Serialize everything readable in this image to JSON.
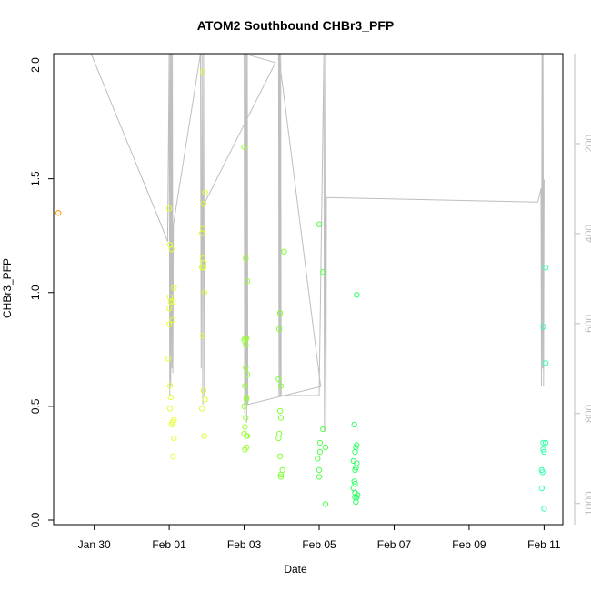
{
  "chart_data": {
    "type": "scatter",
    "title": "ATOM2 Southbound CHBr3_PFP",
    "xlabel": "Date",
    "ylabel": "CHBr3_PFP",
    "xlim": [
      "2017-01-28T22:00",
      "2017-02-11T12:00"
    ],
    "ylim": [
      -0.02,
      2.05
    ],
    "x_ticks": [
      {
        "date": "2017-01-30",
        "label": "Jan 30"
      },
      {
        "date": "2017-02-01",
        "label": "Feb 01"
      },
      {
        "date": "2017-02-03",
        "label": "Feb 03"
      },
      {
        "date": "2017-02-05",
        "label": "Feb 05"
      },
      {
        "date": "2017-02-07",
        "label": "Feb 07"
      },
      {
        "date": "2017-02-09",
        "label": "Feb 09"
      },
      {
        "date": "2017-02-11",
        "label": "Feb 11"
      }
    ],
    "y_ticks": [
      {
        "value": 0.0,
        "label": "0.0"
      },
      {
        "value": 0.5,
        "label": "0.5"
      },
      {
        "value": 1.0,
        "label": "1.0"
      },
      {
        "value": 1.5,
        "label": "1.5"
      },
      {
        "value": 2.0,
        "label": "2.0"
      }
    ],
    "right_axis": {
      "quantity": "pressure",
      "reversed": true,
      "lim": [
        -0.05,
        1047
      ],
      "ticks": [
        {
          "value": 200,
          "label": "200"
        },
        {
          "value": 400,
          "label": "400"
        },
        {
          "value": 600,
          "label": "600"
        },
        {
          "value": 800,
          "label": "800"
        },
        {
          "value": 1000,
          "label": "1000"
        }
      ],
      "color": "#bebebe"
    },
    "points": [
      {
        "x": "2017-01-29T01:00",
        "y": 1.35,
        "color": "#ff9900"
      },
      {
        "x": "2017-02-01T00:00",
        "y": 1.37,
        "color": "#e6ff33"
      },
      {
        "x": "2017-02-01T00:30",
        "y": 1.21,
        "color": "#e6ff33"
      },
      {
        "x": "2017-02-01T01:30",
        "y": 1.19,
        "color": "#e6ff33"
      },
      {
        "x": "2017-02-01T03:00",
        "y": 1.02,
        "color": "#e6ff33"
      },
      {
        "x": "2017-02-01T00:30",
        "y": 0.98,
        "color": "#e6ff33"
      },
      {
        "x": "2017-02-01T01:00",
        "y": 0.96,
        "color": "#e6ff33"
      },
      {
        "x": "2017-02-01T02:30",
        "y": 0.96,
        "color": "#e6ff33"
      },
      {
        "x": "2017-02-01T00:00",
        "y": 0.93,
        "color": "#e6ff33"
      },
      {
        "x": "2017-02-01T02:00",
        "y": 0.88,
        "color": "#e6ff33"
      },
      {
        "x": "2017-02-01T00:00",
        "y": 0.86,
        "color": "#e6ff33"
      },
      {
        "x": "2017-01-31T23:30",
        "y": 0.71,
        "color": "#e6ff33"
      },
      {
        "x": "2017-02-01T00:30",
        "y": 0.59,
        "color": "#e6ff33"
      },
      {
        "x": "2017-02-01T01:00",
        "y": 0.54,
        "color": "#e6ff33"
      },
      {
        "x": "2017-02-01T00:30",
        "y": 0.49,
        "color": "#e6ff33"
      },
      {
        "x": "2017-02-01T03:00",
        "y": 0.44,
        "color": "#e6ff33"
      },
      {
        "x": "2017-02-01T02:00",
        "y": 0.43,
        "color": "#e6ff33"
      },
      {
        "x": "2017-02-01T01:30",
        "y": 0.42,
        "color": "#e6ff33"
      },
      {
        "x": "2017-02-01T03:00",
        "y": 0.36,
        "color": "#e6ff33"
      },
      {
        "x": "2017-02-01T02:30",
        "y": 0.28,
        "color": "#e6ff33"
      },
      {
        "x": "2017-02-01T21:30",
        "y": 1.97,
        "color": "#d4ff33"
      },
      {
        "x": "2017-02-01T23:00",
        "y": 1.44,
        "color": "#d4ff33"
      },
      {
        "x": "2017-02-01T22:00",
        "y": 1.39,
        "color": "#d4ff33"
      },
      {
        "x": "2017-02-01T21:30",
        "y": 1.28,
        "color": "#d4ff33"
      },
      {
        "x": "2017-02-01T21:00",
        "y": 1.26,
        "color": "#d4ff33"
      },
      {
        "x": "2017-02-01T21:30",
        "y": 1.15,
        "color": "#d4ff33"
      },
      {
        "x": "2017-02-01T22:00",
        "y": 1.13,
        "color": "#d4ff33"
      },
      {
        "x": "2017-02-01T21:00",
        "y": 1.11,
        "color": "#d4ff33"
      },
      {
        "x": "2017-02-01T22:00",
        "y": 1.11,
        "color": "#d4ff33"
      },
      {
        "x": "2017-02-01T22:30",
        "y": 1.0,
        "color": "#d4ff33"
      },
      {
        "x": "2017-02-01T21:30",
        "y": 0.81,
        "color": "#d4ff33"
      },
      {
        "x": "2017-02-01T22:00",
        "y": 0.57,
        "color": "#d4ff33"
      },
      {
        "x": "2017-02-01T23:00",
        "y": 0.53,
        "color": "#d4ff33"
      },
      {
        "x": "2017-02-01T21:00",
        "y": 0.49,
        "color": "#d4ff33"
      },
      {
        "x": "2017-02-01T22:30",
        "y": 0.37,
        "color": "#d4ff33"
      },
      {
        "x": "2017-02-03T00:00",
        "y": 1.64,
        "color": "#99ff33"
      },
      {
        "x": "2017-02-03T01:00",
        "y": 1.15,
        "color": "#99ff33"
      },
      {
        "x": "2017-02-03T02:00",
        "y": 1.05,
        "color": "#99ff33"
      },
      {
        "x": "2017-02-03T00:30",
        "y": 0.8,
        "color": "#99ff33"
      },
      {
        "x": "2017-02-03T01:30",
        "y": 0.8,
        "color": "#99ff33"
      },
      {
        "x": "2017-02-03T00:00",
        "y": 0.79,
        "color": "#99ff33"
      },
      {
        "x": "2017-02-03T01:00",
        "y": 0.77,
        "color": "#99ff33"
      },
      {
        "x": "2017-02-03T01:00",
        "y": 0.67,
        "color": "#99ff33"
      },
      {
        "x": "2017-02-03T02:00",
        "y": 0.64,
        "color": "#99ff33"
      },
      {
        "x": "2017-02-03T00:30",
        "y": 0.59,
        "color": "#99ff33"
      },
      {
        "x": "2017-02-03T01:30",
        "y": 0.54,
        "color": "#99ff33"
      },
      {
        "x": "2017-02-03T01:30",
        "y": 0.53,
        "color": "#99ff33"
      },
      {
        "x": "2017-02-03T00:00",
        "y": 0.5,
        "color": "#99ff33"
      },
      {
        "x": "2017-02-03T01:00",
        "y": 0.45,
        "color": "#99ff33"
      },
      {
        "x": "2017-02-03T00:30",
        "y": 0.41,
        "color": "#99ff33"
      },
      {
        "x": "2017-02-03T00:00",
        "y": 0.38,
        "color": "#99ff33"
      },
      {
        "x": "2017-02-03T02:00",
        "y": 0.37,
        "color": "#99ff33"
      },
      {
        "x": "2017-02-03T01:30",
        "y": 0.37,
        "color": "#99ff33"
      },
      {
        "x": "2017-02-03T01:30",
        "y": 0.32,
        "color": "#99ff33"
      },
      {
        "x": "2017-02-03T00:30",
        "y": 0.31,
        "color": "#99ff33"
      },
      {
        "x": "2017-02-03T23:00",
        "y": 0.91,
        "color": "#7fff33"
      },
      {
        "x": "2017-02-03T22:30",
        "y": 0.84,
        "color": "#7fff33"
      },
      {
        "x": "2017-02-04T01:30",
        "y": 1.18,
        "color": "#7fff33"
      },
      {
        "x": "2017-02-03T22:00",
        "y": 0.62,
        "color": "#7fff33"
      },
      {
        "x": "2017-02-03T23:30",
        "y": 0.59,
        "color": "#7fff33"
      },
      {
        "x": "2017-02-03T23:00",
        "y": 0.48,
        "color": "#7fff33"
      },
      {
        "x": "2017-02-03T23:30",
        "y": 0.45,
        "color": "#7fff33"
      },
      {
        "x": "2017-02-03T22:30",
        "y": 0.38,
        "color": "#7fff33"
      },
      {
        "x": "2017-02-03T22:00",
        "y": 0.36,
        "color": "#7fff33"
      },
      {
        "x": "2017-02-03T23:00",
        "y": 0.28,
        "color": "#7fff33"
      },
      {
        "x": "2017-02-04T00:30",
        "y": 0.22,
        "color": "#7fff33"
      },
      {
        "x": "2017-02-03T23:30",
        "y": 0.2,
        "color": "#7fff33"
      },
      {
        "x": "2017-02-03T23:30",
        "y": 0.19,
        "color": "#7fff33"
      },
      {
        "x": "2017-02-05T00:00",
        "y": 1.3,
        "color": "#4dff4d"
      },
      {
        "x": "2017-02-05T02:30",
        "y": 1.09,
        "color": "#4dff4d"
      },
      {
        "x": "2017-02-05T02:30",
        "y": 0.4,
        "color": "#4dff4d"
      },
      {
        "x": "2017-02-05T00:30",
        "y": 0.34,
        "color": "#4dff4d"
      },
      {
        "x": "2017-02-05T04:00",
        "y": 0.32,
        "color": "#4dff4d"
      },
      {
        "x": "2017-02-05T00:30",
        "y": 0.3,
        "color": "#4dff4d"
      },
      {
        "x": "2017-02-04T23:00",
        "y": 0.27,
        "color": "#4dff4d"
      },
      {
        "x": "2017-02-05T00:00",
        "y": 0.22,
        "color": "#4dff4d"
      },
      {
        "x": "2017-02-05T00:00",
        "y": 0.19,
        "color": "#4dff4d"
      },
      {
        "x": "2017-02-05T04:00",
        "y": 0.07,
        "color": "#4dff4d"
      },
      {
        "x": "2017-02-06T00:00",
        "y": 0.99,
        "color": "#33ff66"
      },
      {
        "x": "2017-02-05T22:30",
        "y": 0.42,
        "color": "#33ff66"
      },
      {
        "x": "2017-02-06T00:00",
        "y": 0.33,
        "color": "#33ff66"
      },
      {
        "x": "2017-02-05T23:30",
        "y": 0.32,
        "color": "#33ff66"
      },
      {
        "x": "2017-02-05T23:00",
        "y": 0.3,
        "color": "#33ff66"
      },
      {
        "x": "2017-02-05T22:00",
        "y": 0.26,
        "color": "#33ff66"
      },
      {
        "x": "2017-02-06T00:00",
        "y": 0.25,
        "color": "#33ff66"
      },
      {
        "x": "2017-02-05T23:30",
        "y": 0.23,
        "color": "#33ff66"
      },
      {
        "x": "2017-02-05T23:00",
        "y": 0.22,
        "color": "#33ff66"
      },
      {
        "x": "2017-02-05T22:30",
        "y": 0.17,
        "color": "#33ff66"
      },
      {
        "x": "2017-02-05T23:00",
        "y": 0.16,
        "color": "#33ff66"
      },
      {
        "x": "2017-02-05T22:00",
        "y": 0.14,
        "color": "#33ff66"
      },
      {
        "x": "2017-02-05T23:00",
        "y": 0.12,
        "color": "#33ff66"
      },
      {
        "x": "2017-02-06T00:30",
        "y": 0.11,
        "color": "#33ff66"
      },
      {
        "x": "2017-02-05T23:00",
        "y": 0.1,
        "color": "#33ff66"
      },
      {
        "x": "2017-02-06T00:00",
        "y": 0.1,
        "color": "#33ff66"
      },
      {
        "x": "2017-02-05T23:30",
        "y": 0.08,
        "color": "#33ff66"
      },
      {
        "x": "2017-02-10T23:30",
        "y": 0.85,
        "color": "#33ffaa"
      },
      {
        "x": "2017-02-11T01:00",
        "y": 1.11,
        "color": "#33ffaa"
      },
      {
        "x": "2017-02-11T01:00",
        "y": 0.69,
        "color": "#33ffaa"
      },
      {
        "x": "2017-02-10T23:30",
        "y": 0.34,
        "color": "#33ffaa"
      },
      {
        "x": "2017-02-11T01:00",
        "y": 0.34,
        "color": "#33ffaa"
      },
      {
        "x": "2017-02-10T23:30",
        "y": 0.31,
        "color": "#33ffaa"
      },
      {
        "x": "2017-02-11T00:00",
        "y": 0.3,
        "color": "#33ffaa"
      },
      {
        "x": "2017-02-10T22:30",
        "y": 0.22,
        "color": "#33ffaa"
      },
      {
        "x": "2017-02-10T23:00",
        "y": 0.21,
        "color": "#33ffaa"
      },
      {
        "x": "2017-02-10T22:30",
        "y": 0.14,
        "color": "#33ffaa"
      },
      {
        "x": "2017-02-11T00:00",
        "y": 0.05,
        "color": "#33ffaa"
      }
    ],
    "pressure_trace": {
      "color": "#bebebe",
      "points": [
        [
          "2017-01-29T22:00",
          0
        ],
        [
          "2017-01-31T19:00",
          382
        ],
        [
          "2017-01-31T23:00",
          418
        ],
        [
          "2017-02-01T00:00",
          0
        ],
        [
          "2017-02-01T00:20",
          760
        ],
        [
          "2017-02-01T00:40",
          0
        ],
        [
          "2017-02-01T01:00",
          740
        ],
        [
          "2017-02-01T01:20",
          0
        ],
        [
          "2017-02-01T01:40",
          700
        ],
        [
          "2017-02-01T02:00",
          0
        ],
        [
          "2017-02-01T02:20",
          710
        ],
        [
          "2017-02-01T02:40",
          380
        ],
        [
          "2017-02-01T20:00",
          0
        ],
        [
          "2017-02-01T20:30",
          700
        ],
        [
          "2017-02-01T21:00",
          0
        ],
        [
          "2017-02-01T21:30",
          780
        ],
        [
          "2017-02-01T22:00",
          0
        ],
        [
          "2017-02-01T22:30",
          760
        ],
        [
          "2017-02-01T23:00",
          330
        ],
        [
          "2017-02-03T20:00",
          20
        ],
        [
          "2017-02-03T00:00",
          0
        ],
        [
          "2017-02-03T00:20",
          800
        ],
        [
          "2017-02-03T00:40",
          0
        ],
        [
          "2017-02-03T01:00",
          780
        ],
        [
          "2017-02-03T01:20",
          0
        ],
        [
          "2017-02-03T01:40",
          820
        ],
        [
          "2017-02-03T02:00",
          0
        ],
        [
          "2017-02-03T02:20",
          780
        ],
        [
          "2017-02-05T01:00",
          740
        ],
        [
          "2017-02-03T22:00",
          0
        ],
        [
          "2017-02-03T22:20",
          760
        ],
        [
          "2017-02-03T22:40",
          0
        ],
        [
          "2017-02-03T23:00",
          760
        ],
        [
          "2017-02-03T23:20",
          0
        ],
        [
          "2017-02-03T23:40",
          760
        ],
        [
          "2017-02-05T00:00",
          760
        ],
        [
          "2017-02-05T03:00",
          0
        ],
        [
          "2017-02-05T03:20",
          840
        ],
        [
          "2017-02-05T03:40",
          620
        ],
        [
          "2017-02-05T04:00",
          0
        ],
        [
          "2017-02-05T04:20",
          840
        ],
        [
          "2017-02-05T04:40",
          320
        ],
        [
          "2017-02-10T20:00",
          330
        ],
        [
          "2017-02-10T22:00",
          300
        ],
        [
          "2017-02-10T22:20",
          740
        ],
        [
          "2017-02-10T22:40",
          0
        ],
        [
          "2017-02-10T23:00",
          700
        ],
        [
          "2017-02-10T23:20",
          0
        ],
        [
          "2017-02-10T23:40",
          740
        ],
        [
          "2017-02-11T00:00",
          280
        ]
      ]
    }
  }
}
